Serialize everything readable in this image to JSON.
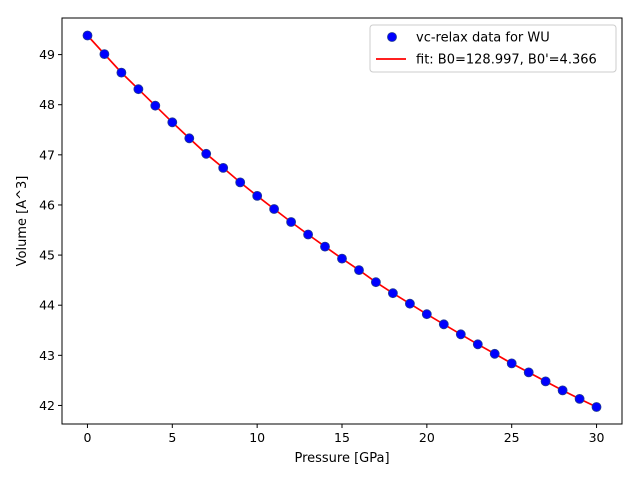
{
  "chart_data": {
    "type": "scatter",
    "xlabel": "Pressure [GPa]",
    "ylabel": "Volume [A^3]",
    "xlim": [
      -1.5,
      31.5
    ],
    "ylim": [
      41.63,
      49.73
    ],
    "xticks": [
      0,
      5,
      10,
      15,
      20,
      25,
      30
    ],
    "yticks": [
      42,
      43,
      44,
      45,
      46,
      47,
      48,
      49
    ],
    "grid": false,
    "legend_position": "top-right",
    "series": [
      {
        "name": "vc-relax data for WU",
        "kind": "markers",
        "color": "#0000ff",
        "edge_color": "#1f3a93",
        "x": [
          0,
          1,
          2,
          3,
          4,
          5,
          6,
          7,
          8,
          9,
          10,
          11,
          12,
          13,
          14,
          15,
          16,
          17,
          18,
          19,
          20,
          21,
          22,
          23,
          24,
          25,
          26,
          27,
          28,
          29,
          30
        ],
        "y": [
          49.38,
          49.01,
          48.64,
          48.31,
          47.98,
          47.65,
          47.33,
          47.02,
          46.74,
          46.45,
          46.18,
          45.92,
          45.66,
          45.41,
          45.17,
          44.93,
          44.7,
          44.46,
          44.24,
          44.03,
          43.82,
          43.62,
          43.42,
          43.22,
          43.03,
          42.84,
          42.66,
          42.48,
          42.3,
          42.13,
          41.97
        ]
      },
      {
        "name": "fit: B0=128.997, B0'=4.366",
        "kind": "line",
        "color": "#ff0000",
        "x": [
          0,
          1,
          2,
          3,
          4,
          5,
          6,
          7,
          8,
          9,
          10,
          11,
          12,
          13,
          14,
          15,
          16,
          17,
          18,
          19,
          20,
          21,
          22,
          23,
          24,
          25,
          26,
          27,
          28,
          29,
          30
        ],
        "y": [
          49.38,
          49.01,
          48.64,
          48.31,
          47.98,
          47.65,
          47.33,
          47.02,
          46.74,
          46.45,
          46.18,
          45.92,
          45.66,
          45.41,
          45.17,
          44.93,
          44.7,
          44.46,
          44.24,
          44.03,
          43.82,
          43.62,
          43.42,
          43.22,
          43.03,
          42.84,
          42.66,
          42.48,
          42.3,
          42.13,
          41.97
        ]
      }
    ]
  }
}
